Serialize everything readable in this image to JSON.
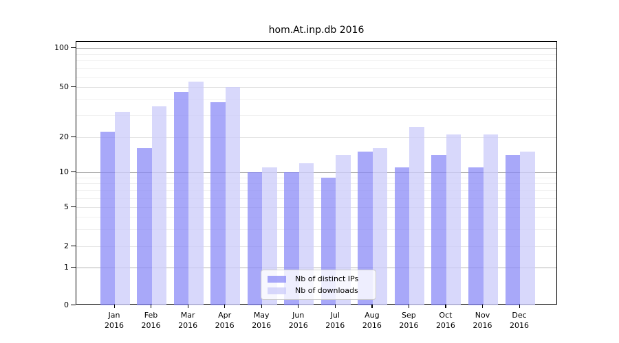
{
  "title": "hom.At.inp.db 2016",
  "colors": {
    "bar_ips": "rgba(135,135,246,0.72)",
    "bar_downloads": "rgba(205,205,250,0.78)",
    "grid_decade": "#b2b2b2",
    "grid_labeled": "#e4e4e4",
    "grid_minor": "#f0f0f0",
    "axis_frame": "#000000"
  },
  "legend": {
    "items": [
      {
        "label": "Nb of distinct IPs",
        "series_key": "bar_ips"
      },
      {
        "label": "Nb of downloads",
        "series_key": "bar_downloads"
      }
    ],
    "position": "lower center"
  },
  "chart_data": {
    "type": "bar",
    "title": "hom.At.inp.db 2016",
    "categories": [
      "Jan",
      "Feb",
      "Mar",
      "Apr",
      "May",
      "Jun",
      "Jul",
      "Aug",
      "Sep",
      "Oct",
      "Nov",
      "Dec"
    ],
    "category_sublabel": "2016",
    "series": [
      {
        "name": "Nb of distinct IPs",
        "values": [
          22,
          16,
          46,
          38,
          10,
          10,
          9,
          15,
          11,
          14,
          11,
          14
        ]
      },
      {
        "name": "Nb of downloads",
        "values": [
          32,
          35,
          55,
          50,
          11,
          12,
          14,
          16,
          24,
          21,
          21,
          15
        ]
      }
    ],
    "xlabel": "",
    "ylabel": "",
    "yscale": "log (with 0 baseline)",
    "y_ticks": [
      {
        "label": "100",
        "value": 100
      },
      {
        "label": "50",
        "value": 50
      },
      {
        "label": "20",
        "value": 20
      },
      {
        "label": "10",
        "value": 10
      },
      {
        "label": "5",
        "value": 5
      },
      {
        "label": "2",
        "value": 2
      },
      {
        "label": "1",
        "value": 1
      },
      {
        "label": "0",
        "value": 0
      }
    ],
    "ylim": [
      0,
      120
    ],
    "grid": true,
    "legend_position": "lower center"
  }
}
